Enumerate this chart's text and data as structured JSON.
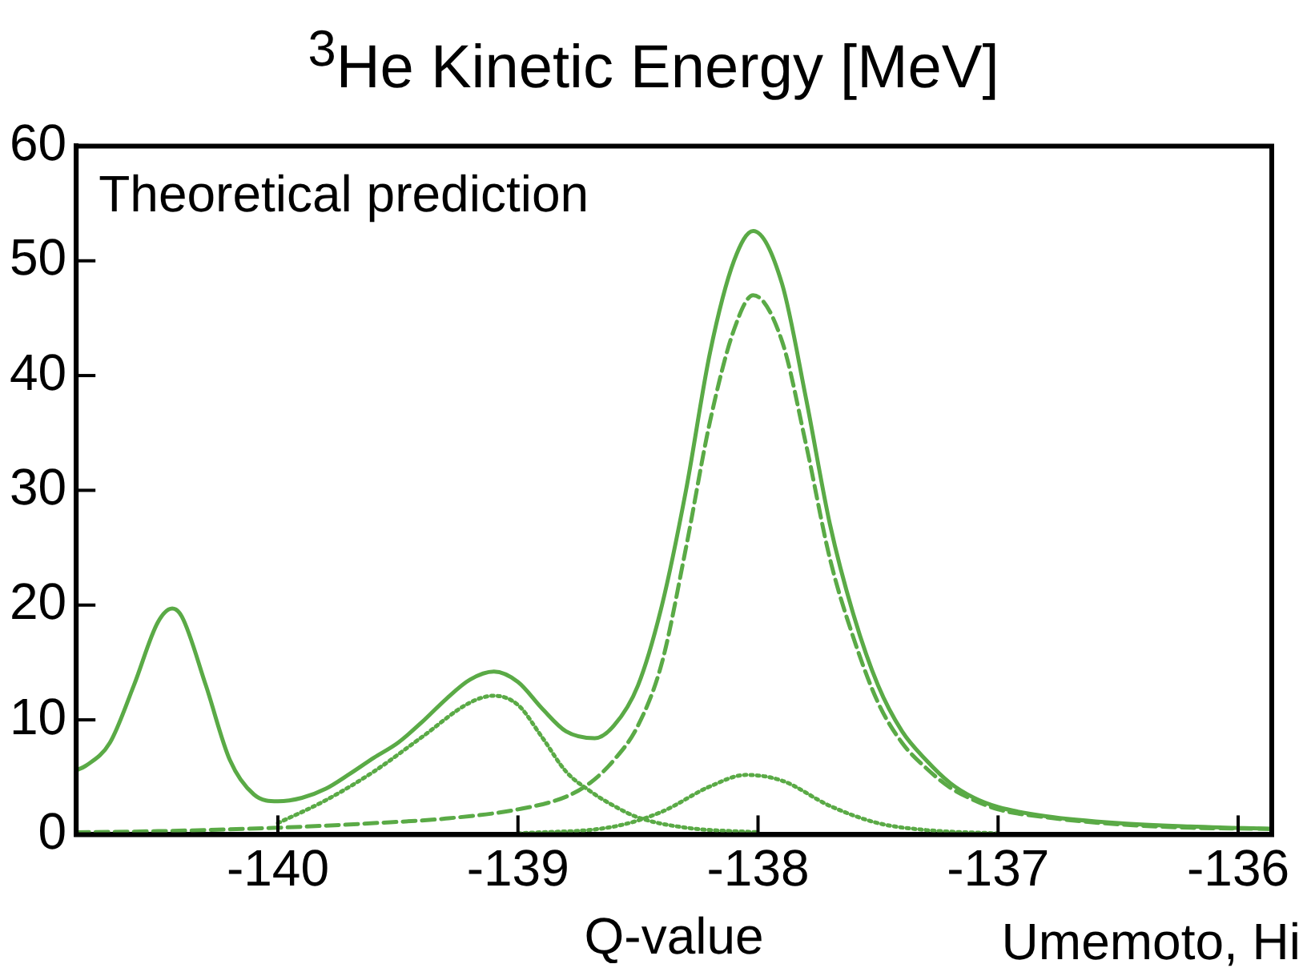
{
  "chart_data": {
    "type": "line",
    "title": "$^{3}$He Kinetic Energy [MeV]",
    "xlabel": "Q-value",
    "annotations": [
      "Theoretical prediction",
      "Umemoto, Hi"
    ],
    "xlim": [
      -140.84,
      -135.86
    ],
    "xticks": [
      -140,
      -139,
      -138,
      -137,
      -136
    ],
    "ylim": [
      0,
      60
    ],
    "yticks": [
      0,
      10,
      20,
      30,
      40,
      50,
      60
    ],
    "grid": false,
    "legend": false,
    "marker": "none",
    "series": [
      {
        "color": "#5aaa46",
        "line_style": "solid",
        "x": [
          -140.84,
          -140.8,
          -140.7,
          -140.6,
          -140.5,
          -140.44,
          -140.4,
          -140.3,
          -140.2,
          -140.1,
          -140.0,
          -139.9,
          -139.8,
          -139.7,
          -139.6,
          -139.5,
          -139.4,
          -139.3,
          -139.2,
          -139.1,
          -139.0,
          -138.9,
          -138.8,
          -138.68,
          -138.6,
          -138.5,
          -138.4,
          -138.3,
          -138.2,
          -138.1,
          -138.02,
          -137.9,
          -137.8,
          -137.7,
          -137.6,
          -137.5,
          -137.4,
          -137.3,
          -137.2,
          -137.1,
          -137.0,
          -136.8,
          -136.5,
          -136.2,
          -135.86
        ],
        "values": [
          5.6,
          6,
          8,
          13,
          18.5,
          19.7,
          19,
          13,
          6.5,
          3.5,
          2.9,
          3.2,
          4,
          5.3,
          6.7,
          8,
          9.8,
          11.8,
          13.5,
          14.2,
          13.3,
          11,
          9,
          8.4,
          9.5,
          13,
          20,
          30,
          42,
          50,
          52.6,
          48,
          38,
          27,
          19,
          13,
          9,
          6.5,
          4.5,
          3.2,
          2.4,
          1.6,
          1.0,
          0.7,
          0.5
        ]
      },
      {
        "color": "#5aaa46",
        "line_style": "dashed",
        "x": [
          -140.84,
          -140.5,
          -140.0,
          -139.6,
          -139.3,
          -139.0,
          -138.8,
          -138.7,
          -138.6,
          -138.5,
          -138.4,
          -138.3,
          -138.2,
          -138.1,
          -138.02,
          -137.9,
          -137.8,
          -137.7,
          -137.6,
          -137.5,
          -137.4,
          -137.3,
          -137.2,
          -137.1,
          -137.0,
          -136.8,
          -136.5,
          -136.2,
          -135.86
        ],
        "values": [
          0.2,
          0.3,
          0.6,
          1.0,
          1.4,
          2.2,
          3.3,
          4.5,
          6.5,
          9.5,
          15,
          25,
          36,
          44,
          47,
          43,
          34,
          24,
          17,
          11.5,
          8,
          5.8,
          4.1,
          3.0,
          2.2,
          1.5,
          0.9,
          0.6,
          0.5
        ]
      },
      {
        "color": "#5aaa46",
        "line_style": "dotted",
        "x": [
          -140.0,
          -139.8,
          -139.6,
          -139.4,
          -139.2,
          -139.1,
          -139.0,
          -138.9,
          -138.8,
          -138.7,
          -138.6,
          -138.5,
          -138.3,
          -138.0
        ],
        "values": [
          1.0,
          3,
          5.5,
          8.5,
          11.5,
          12.1,
          11.3,
          8.5,
          5.5,
          3.8,
          2.5,
          1.5,
          0.6,
          0.2
        ]
      },
      {
        "color": "#5aaa46",
        "line_style": "dotted",
        "x": [
          -139.0,
          -138.6,
          -138.4,
          -138.2,
          -138.05,
          -137.9,
          -137.7,
          -137.5,
          -137.3,
          -137.0
        ],
        "values": [
          0.1,
          0.7,
          2,
          4.2,
          5.2,
          4.7,
          2.5,
          1.0,
          0.4,
          0.1
        ]
      }
    ]
  }
}
